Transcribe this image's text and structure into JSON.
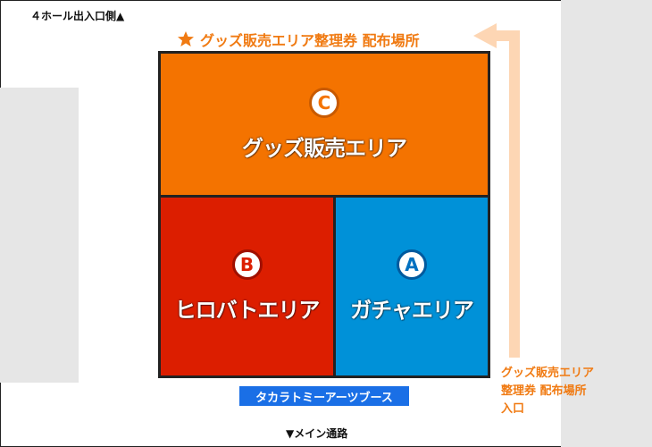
{
  "exit_label": "４ホール出入口側▲",
  "distribution_title": "グッズ販売エリア整理券 配布場所",
  "zones": {
    "c": {
      "badge": "C",
      "name": "グッズ販売エリア",
      "color": "#f47300"
    },
    "b": {
      "badge": "B",
      "name": "ヒロバトエリア",
      "color": "#dc1e00"
    },
    "a": {
      "badge": "A",
      "name": "ガチャエリア",
      "color": "#0091d8"
    }
  },
  "booth_label": "タカラトミーアーツブース",
  "main_aisle_label": "▼メイン通路",
  "entrance_note": [
    "グッズ販売エリア",
    "整理券 配布場所",
    "入口"
  ],
  "icons": {
    "title": "star-icon",
    "route": "arrow-left-icon"
  }
}
